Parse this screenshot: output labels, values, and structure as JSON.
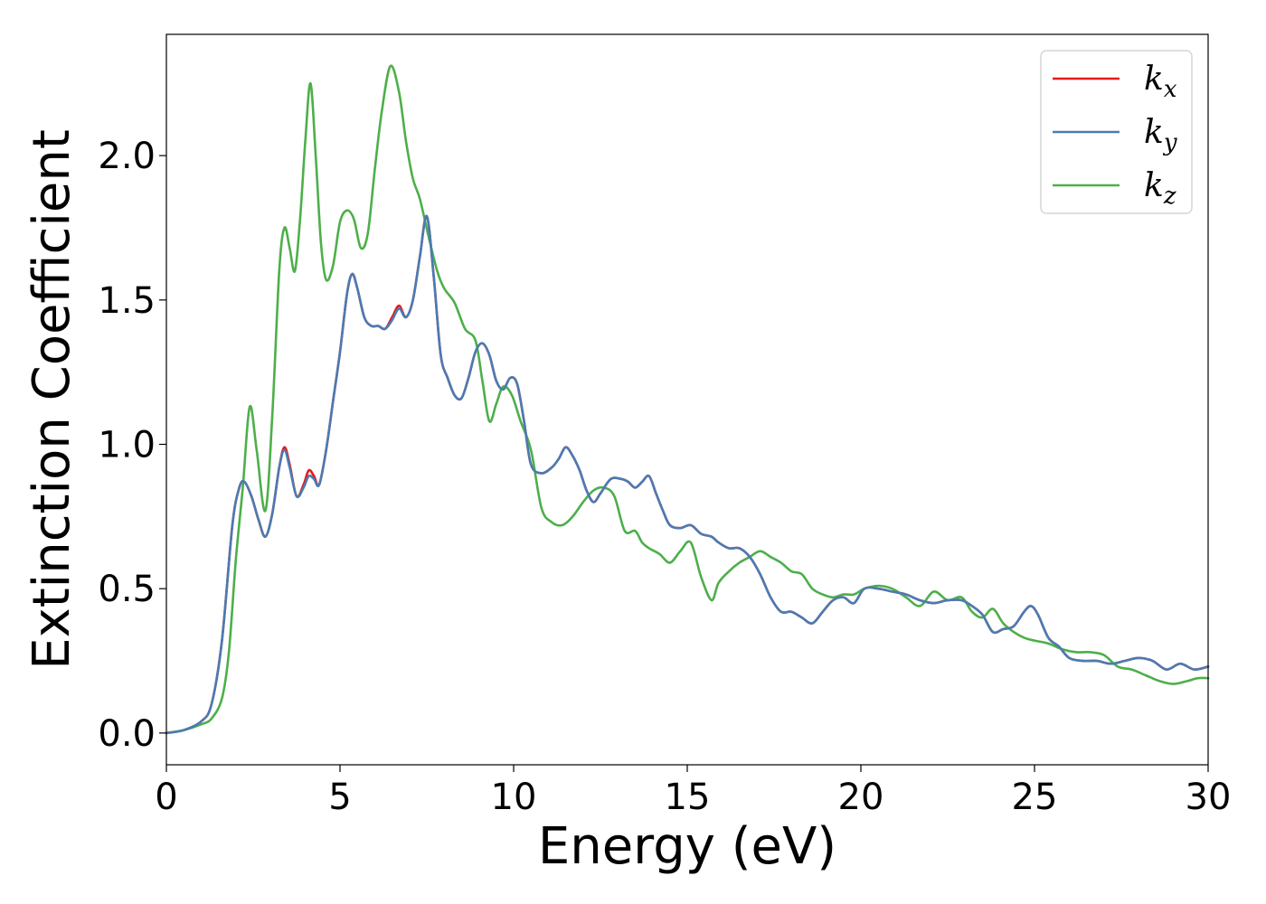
{
  "chart_data": {
    "type": "line",
    "title": "",
    "xlabel": "Energy (eV)",
    "ylabel": "Extinction Coefficient",
    "xlim": [
      0,
      30
    ],
    "ylim": [
      -0.11,
      2.42
    ],
    "xticks": [
      0,
      5,
      10,
      15,
      20,
      25,
      30
    ],
    "xtick_labels": [
      "0",
      "5",
      "10",
      "15",
      "20",
      "25",
      "30"
    ],
    "yticks": [
      0.0,
      0.5,
      1.0,
      1.5,
      2.0
    ],
    "ytick_labels": [
      "0.0",
      "0.5",
      "1.0",
      "1.5",
      "2.0"
    ],
    "grid": false,
    "legend_position": "top-right",
    "series": [
      {
        "name": "k_x",
        "label_main": "k",
        "label_sub": "x",
        "color": "#e41a1c",
        "x": [
          0,
          0.5,
          1.0,
          1.3,
          1.6,
          1.9,
          2.1,
          2.25,
          2.45,
          2.65,
          2.85,
          3.05,
          3.25,
          3.4,
          3.55,
          3.75,
          3.95,
          4.1,
          4.25,
          4.4,
          4.6,
          4.8,
          5.0,
          5.2,
          5.35,
          5.5,
          5.7,
          5.9,
          6.1,
          6.3,
          6.5,
          6.7,
          6.9,
          7.1,
          7.3,
          7.5,
          7.7,
          7.9,
          8.1,
          8.3,
          8.5,
          8.7,
          8.9,
          9.1,
          9.3,
          9.5,
          9.7,
          9.9,
          10.1,
          10.3,
          10.5,
          10.8,
          11.1,
          11.3,
          11.5,
          11.7,
          11.9,
          12.1,
          12.3,
          12.5,
          12.8,
          13.1,
          13.3,
          13.5,
          13.7,
          13.9,
          14.1,
          14.3,
          14.5,
          14.8,
          15.1,
          15.4,
          15.7,
          15.9,
          16.2,
          16.5,
          16.8,
          17.1,
          17.4,
          17.7,
          18.0,
          18.3,
          18.6,
          18.9,
          19.2,
          19.5,
          19.8,
          20.1,
          20.5,
          20.9,
          21.3,
          21.7,
          22.1,
          22.5,
          22.9,
          23.2,
          23.5,
          23.8,
          24.1,
          24.4,
          24.7,
          24.9,
          25.1,
          25.4,
          25.7,
          26.0,
          26.4,
          26.8,
          27.2,
          27.6,
          28.0,
          28.4,
          28.8,
          29.2,
          29.6,
          30.0
        ],
        "values": [
          0.0,
          0.01,
          0.04,
          0.1,
          0.32,
          0.72,
          0.85,
          0.87,
          0.82,
          0.74,
          0.68,
          0.76,
          0.92,
          0.99,
          0.93,
          0.82,
          0.86,
          0.91,
          0.89,
          0.86,
          0.98,
          1.15,
          1.32,
          1.52,
          1.59,
          1.54,
          1.44,
          1.41,
          1.41,
          1.4,
          1.44,
          1.48,
          1.44,
          1.5,
          1.65,
          1.79,
          1.58,
          1.31,
          1.23,
          1.17,
          1.16,
          1.23,
          1.32,
          1.35,
          1.31,
          1.22,
          1.19,
          1.23,
          1.21,
          1.08,
          0.93,
          0.9,
          0.92,
          0.95,
          0.99,
          0.96,
          0.91,
          0.84,
          0.8,
          0.83,
          0.88,
          0.88,
          0.87,
          0.85,
          0.87,
          0.89,
          0.83,
          0.77,
          0.72,
          0.71,
          0.72,
          0.69,
          0.68,
          0.66,
          0.64,
          0.64,
          0.61,
          0.55,
          0.47,
          0.42,
          0.42,
          0.4,
          0.38,
          0.42,
          0.46,
          0.47,
          0.45,
          0.5,
          0.5,
          0.49,
          0.48,
          0.46,
          0.45,
          0.46,
          0.46,
          0.44,
          0.41,
          0.35,
          0.36,
          0.37,
          0.42,
          0.44,
          0.41,
          0.33,
          0.3,
          0.26,
          0.25,
          0.25,
          0.24,
          0.25,
          0.26,
          0.25,
          0.22,
          0.24,
          0.22,
          0.23
        ]
      },
      {
        "name": "k_y",
        "label_main": "k",
        "label_sub": "y",
        "color": "#4a7bb3",
        "x": [
          0,
          0.5,
          1.0,
          1.3,
          1.6,
          1.9,
          2.1,
          2.25,
          2.45,
          2.65,
          2.85,
          3.05,
          3.25,
          3.4,
          3.55,
          3.75,
          3.95,
          4.1,
          4.25,
          4.4,
          4.6,
          4.8,
          5.0,
          5.2,
          5.35,
          5.5,
          5.7,
          5.9,
          6.1,
          6.3,
          6.5,
          6.7,
          6.9,
          7.1,
          7.3,
          7.5,
          7.7,
          7.9,
          8.1,
          8.3,
          8.5,
          8.7,
          8.9,
          9.1,
          9.3,
          9.5,
          9.7,
          9.9,
          10.1,
          10.3,
          10.5,
          10.8,
          11.1,
          11.3,
          11.5,
          11.7,
          11.9,
          12.1,
          12.3,
          12.5,
          12.8,
          13.1,
          13.3,
          13.5,
          13.7,
          13.9,
          14.1,
          14.3,
          14.5,
          14.8,
          15.1,
          15.4,
          15.7,
          15.9,
          16.2,
          16.5,
          16.8,
          17.1,
          17.4,
          17.7,
          18.0,
          18.3,
          18.6,
          18.9,
          19.2,
          19.5,
          19.8,
          20.1,
          20.5,
          20.9,
          21.3,
          21.7,
          22.1,
          22.5,
          22.9,
          23.2,
          23.5,
          23.8,
          24.1,
          24.4,
          24.7,
          24.9,
          25.1,
          25.4,
          25.7,
          26.0,
          26.4,
          26.8,
          27.2,
          27.6,
          28.0,
          28.4,
          28.8,
          29.2,
          29.6,
          30.0
        ],
        "values": [
          0.0,
          0.01,
          0.04,
          0.1,
          0.32,
          0.72,
          0.85,
          0.87,
          0.82,
          0.74,
          0.68,
          0.76,
          0.92,
          0.98,
          0.92,
          0.82,
          0.85,
          0.89,
          0.88,
          0.86,
          0.98,
          1.15,
          1.32,
          1.52,
          1.59,
          1.54,
          1.44,
          1.41,
          1.41,
          1.4,
          1.43,
          1.47,
          1.44,
          1.5,
          1.65,
          1.79,
          1.58,
          1.31,
          1.23,
          1.17,
          1.16,
          1.23,
          1.32,
          1.35,
          1.31,
          1.22,
          1.19,
          1.23,
          1.21,
          1.08,
          0.93,
          0.9,
          0.92,
          0.95,
          0.99,
          0.96,
          0.91,
          0.84,
          0.8,
          0.83,
          0.88,
          0.88,
          0.87,
          0.85,
          0.87,
          0.89,
          0.83,
          0.77,
          0.72,
          0.71,
          0.72,
          0.69,
          0.68,
          0.66,
          0.64,
          0.64,
          0.61,
          0.55,
          0.47,
          0.42,
          0.42,
          0.4,
          0.38,
          0.42,
          0.46,
          0.47,
          0.45,
          0.5,
          0.5,
          0.49,
          0.48,
          0.46,
          0.45,
          0.46,
          0.46,
          0.44,
          0.41,
          0.35,
          0.36,
          0.37,
          0.42,
          0.44,
          0.41,
          0.33,
          0.3,
          0.26,
          0.25,
          0.25,
          0.24,
          0.25,
          0.26,
          0.25,
          0.22,
          0.24,
          0.22,
          0.23
        ]
      },
      {
        "name": "k_z",
        "label_main": "k",
        "label_sub": "z",
        "color": "#4daf4a",
        "x": [
          0,
          0.5,
          1.0,
          1.3,
          1.6,
          1.8,
          2.0,
          2.2,
          2.4,
          2.6,
          2.85,
          3.05,
          3.25,
          3.4,
          3.55,
          3.7,
          3.85,
          4.0,
          4.15,
          4.3,
          4.45,
          4.6,
          4.8,
          5.0,
          5.2,
          5.4,
          5.6,
          5.8,
          6.0,
          6.2,
          6.45,
          6.7,
          6.9,
          7.1,
          7.3,
          7.55,
          7.8,
          8.0,
          8.3,
          8.6,
          8.9,
          9.1,
          9.3,
          9.5,
          9.7,
          9.95,
          10.2,
          10.5,
          10.8,
          11.1,
          11.4,
          11.7,
          12.0,
          12.3,
          12.6,
          12.9,
          13.2,
          13.5,
          13.7,
          13.9,
          14.2,
          14.5,
          14.8,
          15.1,
          15.4,
          15.7,
          15.9,
          16.2,
          16.5,
          16.8,
          17.1,
          17.4,
          17.7,
          18.0,
          18.3,
          18.6,
          18.9,
          19.2,
          19.5,
          19.8,
          20.1,
          20.5,
          20.9,
          21.3,
          21.7,
          22.1,
          22.5,
          22.9,
          23.2,
          23.5,
          23.8,
          24.1,
          24.4,
          24.7,
          25.0,
          25.4,
          25.8,
          26.2,
          26.6,
          27.0,
          27.4,
          27.8,
          28.2,
          28.6,
          29.0,
          29.4,
          29.7,
          30.0
        ],
        "values": [
          0.0,
          0.01,
          0.03,
          0.05,
          0.12,
          0.28,
          0.6,
          0.85,
          1.13,
          0.98,
          0.77,
          1.1,
          1.6,
          1.75,
          1.68,
          1.6,
          1.78,
          2.05,
          2.25,
          2.0,
          1.7,
          1.57,
          1.62,
          1.77,
          1.81,
          1.78,
          1.68,
          1.73,
          1.95,
          2.15,
          2.31,
          2.22,
          2.05,
          1.92,
          1.85,
          1.72,
          1.6,
          1.54,
          1.49,
          1.4,
          1.36,
          1.22,
          1.08,
          1.14,
          1.2,
          1.17,
          1.08,
          0.98,
          0.78,
          0.73,
          0.72,
          0.75,
          0.8,
          0.84,
          0.85,
          0.82,
          0.7,
          0.7,
          0.66,
          0.64,
          0.62,
          0.59,
          0.63,
          0.66,
          0.54,
          0.46,
          0.52,
          0.56,
          0.59,
          0.61,
          0.63,
          0.61,
          0.59,
          0.56,
          0.55,
          0.5,
          0.48,
          0.47,
          0.48,
          0.48,
          0.5,
          0.51,
          0.5,
          0.47,
          0.44,
          0.49,
          0.46,
          0.47,
          0.42,
          0.4,
          0.43,
          0.38,
          0.35,
          0.33,
          0.32,
          0.31,
          0.29,
          0.28,
          0.28,
          0.27,
          0.23,
          0.22,
          0.2,
          0.18,
          0.17,
          0.18,
          0.19,
          0.19
        ]
      }
    ]
  }
}
